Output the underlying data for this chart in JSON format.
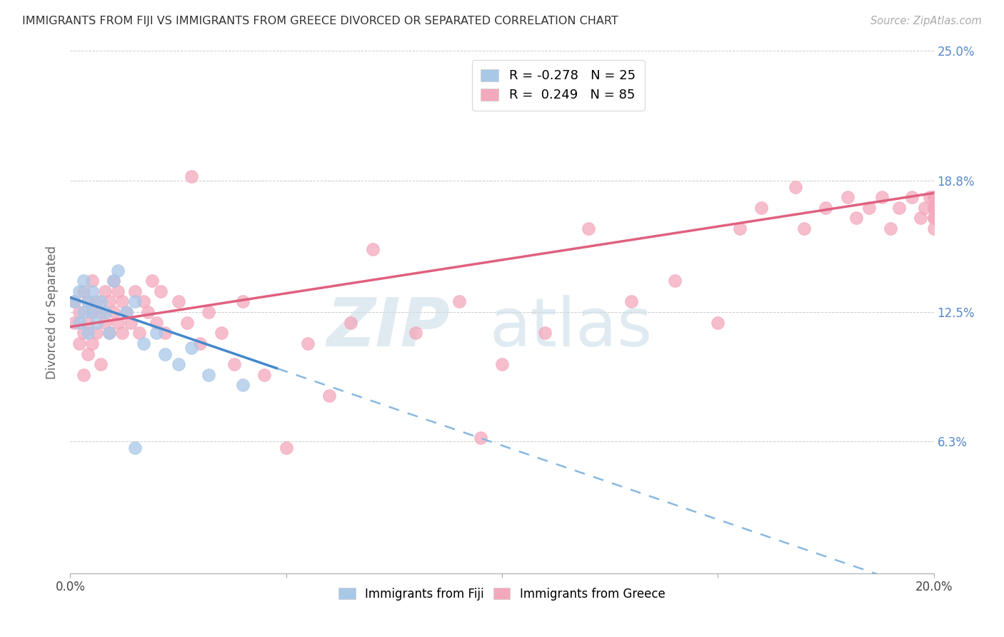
{
  "title": "IMMIGRANTS FROM FIJI VS IMMIGRANTS FROM GREECE DIVORCED OR SEPARATED CORRELATION CHART",
  "source": "Source: ZipAtlas.com",
  "ylabel": "Divorced or Separated",
  "xlim": [
    0.0,
    0.2
  ],
  "ylim": [
    0.0,
    0.25
  ],
  "xtick_pos": [
    0.0,
    0.05,
    0.1,
    0.15,
    0.2
  ],
  "xticklabels": [
    "0.0%",
    "",
    "",
    "",
    "20.0%"
  ],
  "ytick_labels_right": [
    "25.0%",
    "18.8%",
    "12.5%",
    "6.3%",
    ""
  ],
  "ytick_vals": [
    0.25,
    0.188,
    0.125,
    0.063,
    0.0
  ],
  "fiji_color": "#a8c8e8",
  "greece_color": "#f4a8bc",
  "fiji_line_color": "#4488cc",
  "greece_line_color": "#e06080",
  "fiji_line_dashed_color": "#88b8e0",
  "legend_fiji_label": "R = -0.278   N = 25",
  "legend_greece_label": "R =  0.249   N = 85",
  "fiji_legend_color": "#a8c8e8",
  "greece_legend_color": "#f4a8bc",
  "bottom_legend_fiji": "Immigrants from Fiji",
  "bottom_legend_greece": "Immigrants from Greece",
  "fiji_line_x0": 0.0,
  "fiji_line_y0": 0.132,
  "fiji_line_x1": 0.048,
  "fiji_line_y1": 0.098,
  "fiji_line_solid_end": 0.048,
  "fiji_line_dash_end": 0.2,
  "greece_line_x0": 0.0,
  "greece_line_y0": 0.118,
  "greece_line_x1": 0.2,
  "greece_line_y1": 0.182,
  "fiji_x": [
    0.001,
    0.002,
    0.002,
    0.003,
    0.003,
    0.004,
    0.004,
    0.005,
    0.005,
    0.006,
    0.007,
    0.008,
    0.009,
    0.01,
    0.011,
    0.013,
    0.015,
    0.017,
    0.02,
    0.022,
    0.025,
    0.028,
    0.032,
    0.04,
    0.015
  ],
  "fiji_y": [
    0.13,
    0.12,
    0.135,
    0.125,
    0.14,
    0.115,
    0.13,
    0.125,
    0.135,
    0.12,
    0.13,
    0.125,
    0.115,
    0.14,
    0.145,
    0.125,
    0.13,
    0.11,
    0.115,
    0.105,
    0.1,
    0.108,
    0.095,
    0.09,
    0.06
  ],
  "greece_x": [
    0.001,
    0.001,
    0.002,
    0.002,
    0.003,
    0.003,
    0.003,
    0.004,
    0.004,
    0.004,
    0.005,
    0.005,
    0.005,
    0.006,
    0.006,
    0.007,
    0.007,
    0.008,
    0.008,
    0.009,
    0.009,
    0.01,
    0.01,
    0.011,
    0.011,
    0.012,
    0.012,
    0.013,
    0.014,
    0.015,
    0.016,
    0.017,
    0.018,
    0.019,
    0.02,
    0.021,
    0.022,
    0.025,
    0.027,
    0.028,
    0.03,
    0.032,
    0.035,
    0.038,
    0.04,
    0.045,
    0.05,
    0.055,
    0.06,
    0.065,
    0.07,
    0.08,
    0.09,
    0.095,
    0.1,
    0.11,
    0.12,
    0.13,
    0.14,
    0.15,
    0.155,
    0.16,
    0.168,
    0.17,
    0.175,
    0.18,
    0.182,
    0.185,
    0.188,
    0.19,
    0.192,
    0.195,
    0.197,
    0.198,
    0.199,
    0.2,
    0.2,
    0.2,
    0.2,
    0.2,
    0.2,
    0.2,
    0.2,
    0.2,
    0.2
  ],
  "greece_y": [
    0.12,
    0.13,
    0.11,
    0.125,
    0.095,
    0.115,
    0.135,
    0.105,
    0.12,
    0.13,
    0.11,
    0.125,
    0.14,
    0.115,
    0.13,
    0.1,
    0.125,
    0.12,
    0.135,
    0.115,
    0.13,
    0.125,
    0.14,
    0.12,
    0.135,
    0.115,
    0.13,
    0.125,
    0.12,
    0.135,
    0.115,
    0.13,
    0.125,
    0.14,
    0.12,
    0.135,
    0.115,
    0.13,
    0.12,
    0.19,
    0.11,
    0.125,
    0.115,
    0.1,
    0.13,
    0.095,
    0.06,
    0.11,
    0.085,
    0.12,
    0.155,
    0.115,
    0.13,
    0.065,
    0.1,
    0.115,
    0.165,
    0.13,
    0.14,
    0.12,
    0.165,
    0.175,
    0.185,
    0.165,
    0.175,
    0.18,
    0.17,
    0.175,
    0.18,
    0.165,
    0.175,
    0.18,
    0.17,
    0.175,
    0.18,
    0.175,
    0.18,
    0.165,
    0.175,
    0.18,
    0.17,
    0.175,
    0.18,
    0.17,
    0.175
  ]
}
